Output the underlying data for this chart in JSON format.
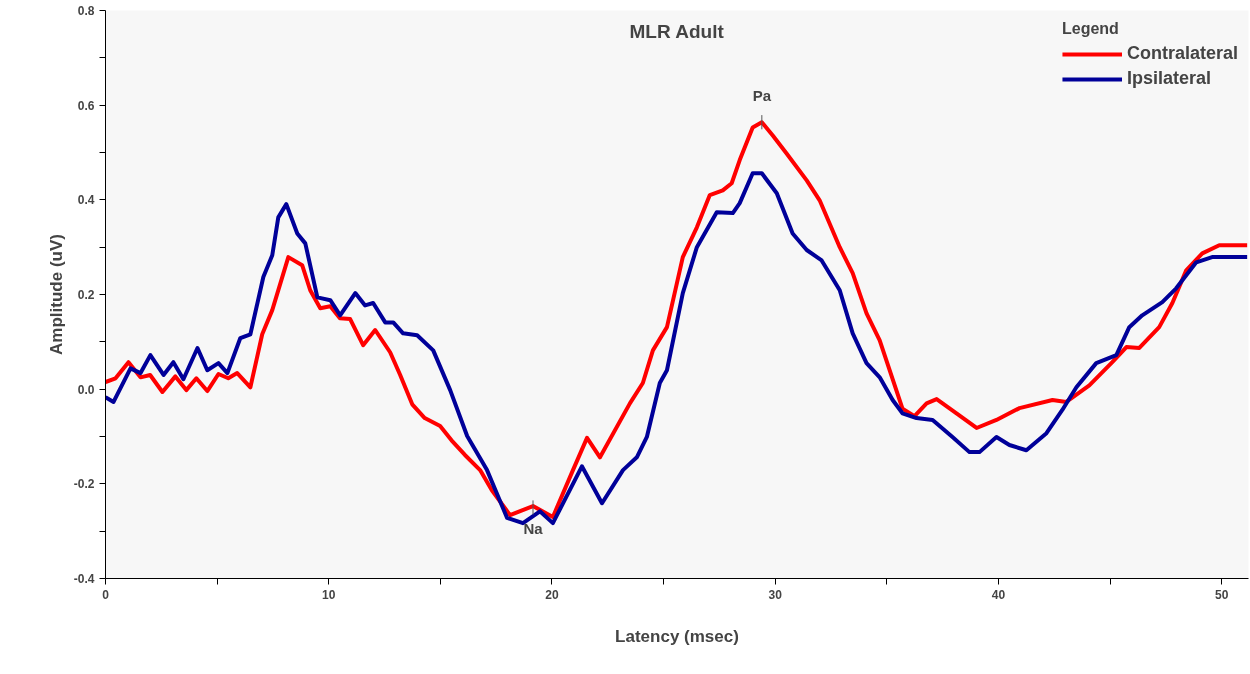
{
  "chart_data": {
    "type": "line",
    "title": "MLR Adult",
    "xlabel": "Latency (msec)",
    "ylabel": "Amplitude (uV)",
    "legend_title": "Legend",
    "legend": "top right",
    "grid": false,
    "marker": "none",
    "line_style": "solid",
    "xlim": [
      0,
      51.2
    ],
    "ylim": [
      -0.4,
      0.8
    ],
    "xticks": [
      0,
      {
        "value": 5,
        "label": null
      },
      10,
      {
        "value": 15,
        "label": null
      },
      20,
      {
        "value": 25,
        "label": null
      },
      30,
      {
        "value": 35,
        "label": null
      },
      40,
      {
        "value": 45,
        "label": null
      },
      50
    ],
    "yticks": [
      {
        "value": -0.4,
        "label": "-0.4"
      },
      {
        "value": -0.3,
        "label": null
      },
      {
        "value": -0.2,
        "label": "-0.2"
      },
      {
        "value": -0.1,
        "label": null
      },
      {
        "value": 0,
        "label": "0.0"
      },
      {
        "value": 0.1,
        "label": null
      },
      {
        "value": 0.2,
        "label": "0.2"
      },
      {
        "value": 0.3,
        "label": null
      },
      {
        "value": 0.4,
        "label": "0.4"
      },
      {
        "value": 0.5,
        "label": null
      },
      {
        "value": 0.6,
        "label": "0.6"
      },
      {
        "value": 0.7,
        "label": null
      },
      {
        "value": 0.8,
        "label": "0.8"
      }
    ],
    "annotations": [
      {
        "text": "Pa",
        "x": 29.4,
        "y": 0.564
      },
      {
        "text": "Na",
        "x": 19.15,
        "y": -0.25
      }
    ],
    "series": [
      {
        "name": "Contralateral",
        "color": "#ff0000",
        "x": [
          0,
          0.45,
          1.03,
          1.57,
          2.0,
          2.55,
          3.13,
          3.62,
          4.07,
          4.56,
          5.06,
          5.5,
          5.9,
          6.49,
          7.02,
          7.47,
          8.19,
          8.81,
          9.17,
          9.62,
          10.07,
          10.5,
          10.96,
          11.54,
          12.08,
          12.75,
          13.2,
          13.74,
          14.3,
          14.99,
          15.5,
          16.1,
          16.78,
          17.3,
          18.12,
          19.15,
          20.04,
          20.94,
          21.57,
          22.15,
          23.49,
          24.07,
          24.52,
          25.15,
          25.86,
          26.49,
          27.07,
          27.65,
          28.05,
          28.41,
          28.99,
          29.4,
          29.89,
          30.51,
          31.41,
          31.99,
          32.89,
          33.47,
          34.09,
          34.68,
          35.7,
          36.24,
          36.78,
          37.23,
          38.12,
          39.02,
          39.91,
          40.94,
          42.42,
          43.04,
          44.07,
          45.1,
          45.73,
          46.31,
          47.2,
          47.79,
          48.41,
          49.13,
          49.89,
          51.14
        ],
        "values": [
          0.015,
          0.023,
          0.057,
          0.025,
          0.03,
          -0.006,
          0.027,
          -0.002,
          0.023,
          -0.004,
          0.032,
          0.023,
          0.034,
          0.004,
          0.116,
          0.167,
          0.279,
          0.262,
          0.209,
          0.171,
          0.175,
          0.15,
          0.148,
          0.093,
          0.125,
          0.078,
          0.03,
          -0.032,
          -0.061,
          -0.078,
          -0.108,
          -0.139,
          -0.171,
          -0.213,
          -0.266,
          -0.247,
          -0.27,
          -0.171,
          -0.103,
          -0.144,
          -0.03,
          0.013,
          0.082,
          0.131,
          0.279,
          0.342,
          0.41,
          0.42,
          0.435,
          0.484,
          0.553,
          0.564,
          0.536,
          0.498,
          0.441,
          0.399,
          0.3,
          0.245,
          0.16,
          0.103,
          -0.041,
          -0.057,
          -0.03,
          -0.021,
          -0.051,
          -0.082,
          -0.065,
          -0.04,
          -0.023,
          -0.027,
          0.008,
          0.057,
          0.089,
          0.087,
          0.131,
          0.182,
          0.251,
          0.287,
          0.304,
          0.304
        ]
      },
      {
        "name": "Ipsilateral",
        "color": "#000099",
        "x": [
          0,
          0.36,
          1.12,
          1.57,
          2.01,
          2.6,
          3.04,
          3.49,
          4.12,
          4.56,
          5.06,
          5.46,
          6.04,
          6.49,
          7.07,
          7.47,
          7.74,
          8.1,
          8.59,
          8.95,
          9.49,
          10.07,
          10.51,
          11.19,
          11.63,
          11.99,
          12.53,
          12.89,
          13.33,
          13.96,
          14.68,
          15.44,
          16.2,
          17.09,
          17.99,
          18.7,
          19.46,
          20.04,
          21.34,
          22.24,
          23.18,
          23.8,
          24.25,
          24.83,
          25.15,
          25.86,
          26.49,
          27.38,
          28.1,
          28.41,
          28.99,
          29.4,
          30.07,
          30.78,
          31.41,
          32.08,
          32.89,
          33.47,
          34.09,
          34.68,
          35.26,
          35.7,
          36.33,
          37.05,
          37.94,
          38.7,
          39.15,
          39.91,
          40.49,
          41.25,
          42.15,
          42.86,
          43.49,
          44.38,
          45.28,
          45.86,
          46.44,
          47.34,
          47.96,
          48.86,
          49.57,
          51.14
        ],
        "values": [
          -0.017,
          -0.027,
          0.044,
          0.034,
          0.072,
          0.03,
          0.057,
          0.021,
          0.087,
          0.04,
          0.055,
          0.034,
          0.108,
          0.116,
          0.237,
          0.283,
          0.363,
          0.391,
          0.329,
          0.308,
          0.194,
          0.188,
          0.156,
          0.203,
          0.177,
          0.182,
          0.141,
          0.141,
          0.118,
          0.114,
          0.082,
          -0.002,
          -0.099,
          -0.171,
          -0.272,
          -0.283,
          -0.258,
          -0.283,
          -0.163,
          -0.241,
          -0.171,
          -0.144,
          -0.101,
          0.013,
          0.04,
          0.203,
          0.3,
          0.374,
          0.372,
          0.393,
          0.456,
          0.456,
          0.414,
          0.329,
          0.294,
          0.272,
          0.209,
          0.118,
          0.055,
          0.025,
          -0.023,
          -0.051,
          -0.061,
          -0.065,
          -0.101,
          -0.133,
          -0.133,
          -0.101,
          -0.118,
          -0.129,
          -0.093,
          -0.044,
          0.004,
          0.055,
          0.072,
          0.131,
          0.156,
          0.184,
          0.213,
          0.268,
          0.279,
          0.279
        ]
      }
    ]
  }
}
